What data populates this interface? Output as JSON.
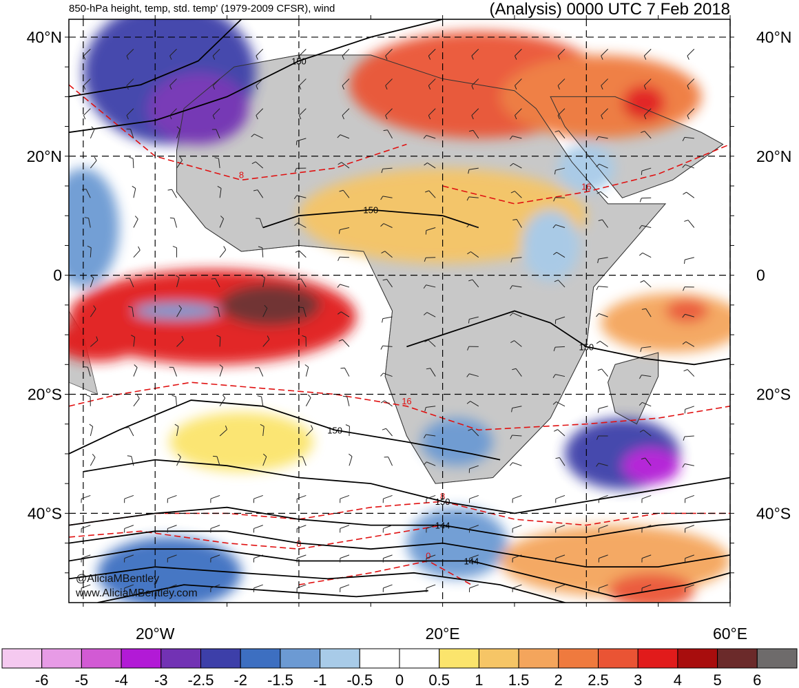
{
  "header": {
    "title_left": "850-hPa height, temp, std. temp' (1979-2009 CFSR), wind",
    "title_right": "(Analysis) 0000 UTC 7 Feb 2018"
  },
  "credits": {
    "handle": "@AliciaMBentley",
    "site": "www.AliciaMBentley.com"
  },
  "colors": {
    "neg6": "#f5c9f0",
    "neg5": "#e79be6",
    "neg4": "#d25ad4",
    "neg3": "#b21ad6",
    "neg25": "#7232b4",
    "neg2": "#3d3fa9",
    "neg15": "#3d6fc1",
    "neg1": "#6c9ad3",
    "neg05": "#a8cbe8",
    "zero": "#ffffff",
    "pos05": "#fbe46c",
    "pos1": "#f6c566",
    "pos15": "#f4a55c",
    "pos2": "#ef7a3e",
    "pos25": "#ea5434",
    "pos3": "#e11b1b",
    "pos4": "#a80d0d",
    "pos5": "#6b2a2a",
    "pos6": "#6e6b6b",
    "land": "#c8c8c8",
    "height_contour": "#000000",
    "temp_contour": "#e01010"
  },
  "chart_data": {
    "type": "heatmap",
    "title": "850-hPa height, temp, std. temp' (1979-2009 CFSR), wind",
    "subtitle": "(Analysis) 0000 UTC 7 Feb 2018",
    "lon_range": [
      -32,
      60
    ],
    "lat_range": [
      -55,
      43
    ],
    "lat_ticks": [
      {
        "lat": 40,
        "label": "40°N"
      },
      {
        "lat": 20,
        "label": "20°N"
      },
      {
        "lat": 0,
        "label": "0"
      },
      {
        "lat": -20,
        "label": "20°S"
      },
      {
        "lat": -40,
        "label": "40°S"
      }
    ],
    "lon_ticks": [
      {
        "lon": -20,
        "label": "20°W"
      },
      {
        "lon": 20,
        "label": "20°E"
      },
      {
        "lon": 60,
        "label": "60°E"
      }
    ],
    "grid_lons": [
      -30,
      -20,
      -10,
      0,
      10,
      20,
      30,
      40,
      50,
      60
    ],
    "grid_lats": [
      40,
      30,
      20,
      10,
      0,
      -10,
      -20,
      -30,
      -40,
      -50
    ],
    "colorbar": {
      "labels": [
        "-6",
        "-5",
        "-4",
        "-3",
        "-2.5",
        "-2",
        "-1.5",
        "-1",
        "-0.5",
        "0",
        "0.5",
        "1",
        "1.5",
        "2",
        "2.5",
        "3",
        "4",
        "5",
        "6"
      ],
      "bins": [
        "neg6",
        "neg5",
        "neg4",
        "neg3",
        "neg25",
        "neg2",
        "neg15",
        "neg1",
        "neg05",
        "zero",
        "zero",
        "pos05",
        "pos1",
        "pos15",
        "pos2",
        "pos25",
        "pos3",
        "pos4",
        "pos5",
        "pos6"
      ]
    },
    "anomaly_regions": [
      {
        "name": "equatorial-atlantic-warm",
        "lon": -12,
        "lat": -7,
        "rx": 20,
        "ry": 8,
        "value": 3.5
      },
      {
        "name": "equatorial-atlantic-core",
        "lon": -4,
        "lat": -5,
        "rx": 7,
        "ry": 3.5,
        "value": 5.5
      },
      {
        "name": "atlantic-west-warm",
        "lon": -28,
        "lat": -11,
        "rx": 6,
        "ry": 3.5,
        "value": 3.5
      },
      {
        "name": "atlantic-cold-streak",
        "lon": -17,
        "lat": -6,
        "rx": 6,
        "ry": 1.3,
        "value": -1.2
      },
      {
        "name": "north-africa-warm",
        "lon": 25,
        "lat": 32,
        "rx": 18,
        "ry": 9,
        "value": 2.8
      },
      {
        "name": "middle-east-warm",
        "lon": 42,
        "lat": 30,
        "rx": 14,
        "ry": 7,
        "value": 2.2
      },
      {
        "name": "iran-hot-spot",
        "lon": 48,
        "lat": 29,
        "rx": 3,
        "ry": 3,
        "value": 3.5
      },
      {
        "name": "sahel-warm",
        "lon": 20,
        "lat": 10,
        "rx": 20,
        "ry": 8,
        "value": 1.0
      },
      {
        "name": "north-atlantic-cold",
        "lon": -18,
        "lat": 34,
        "rx": 12,
        "ry": 12,
        "value": -2.3
      },
      {
        "name": "north-atlantic-cold-core",
        "lon": -14,
        "lat": 28,
        "rx": 7,
        "ry": 6,
        "value": -2.8
      },
      {
        "name": "western-atlantic-cold",
        "lon": -30,
        "lat": 8,
        "rx": 5,
        "ry": 10,
        "value": -1.0
      },
      {
        "name": "madagascar-cold",
        "lon": 45,
        "lat": -30,
        "rx": 8,
        "ry": 6,
        "value": -2.0
      },
      {
        "name": "madagascar-cold-core",
        "lon": 49,
        "lat": -32,
        "rx": 4,
        "ry": 3,
        "value": -3.5
      },
      {
        "name": "south-africa-cold",
        "lon": 22,
        "lat": -28,
        "rx": 5,
        "ry": 4,
        "value": -1.0
      },
      {
        "name": "southern-atlantic-cold",
        "lon": -18,
        "lat": -50,
        "rx": 10,
        "ry": 6,
        "value": -1.5
      },
      {
        "name": "southern-ocean-cold",
        "lon": 22,
        "lat": -45,
        "rx": 7,
        "ry": 6,
        "value": -1.3
      },
      {
        "name": "southern-ocean-warm",
        "lon": 44,
        "lat": -48,
        "rx": 16,
        "ry": 6,
        "value": 1.7
      },
      {
        "name": "southern-ocean-warm-core",
        "lon": 49,
        "lat": -53,
        "rx": 6,
        "ry": 3,
        "value": 2.8
      },
      {
        "name": "indian-ocean-warm",
        "lon": 52,
        "lat": -8,
        "rx": 10,
        "ry": 5,
        "value": 1.5
      },
      {
        "name": "indian-ocean-hot",
        "lon": 54,
        "lat": -6,
        "rx": 3,
        "ry": 2,
        "value": 2.8
      },
      {
        "name": "south-atlantic-warm",
        "lon": -8,
        "lat": -28,
        "rx": 10,
        "ry": 5,
        "value": 0.8
      },
      {
        "name": "east-africa-cold",
        "lon": 35,
        "lat": 5,
        "rx": 4,
        "ry": 6,
        "value": -0.8
      },
      {
        "name": "arabia-sea-cold",
        "lon": 40,
        "lat": 18,
        "rx": 4,
        "ry": 4,
        "value": -0.8
      }
    ],
    "height_contours": [
      {
        "label": "150",
        "points": [
          [
            -32,
            24
          ],
          [
            -20,
            26
          ],
          [
            -10,
            30
          ],
          [
            0,
            36
          ],
          [
            10,
            40
          ],
          [
            20,
            43
          ]
        ]
      },
      {
        "label": "",
        "points": [
          [
            -32,
            30
          ],
          [
            -22,
            32
          ],
          [
            -14,
            36
          ],
          [
            -8,
            43
          ]
        ]
      },
      {
        "label": "150",
        "points": [
          [
            -5,
            8
          ],
          [
            0,
            10
          ],
          [
            10,
            11
          ],
          [
            20,
            10
          ],
          [
            25,
            8
          ]
        ]
      },
      {
        "label": "150",
        "points": [
          [
            15,
            -12
          ],
          [
            25,
            -8
          ],
          [
            30,
            -6
          ],
          [
            35,
            -8
          ],
          [
            40,
            -12
          ],
          [
            48,
            -14
          ],
          [
            55,
            -15
          ],
          [
            60,
            -14
          ]
        ]
      },
      {
        "label": "150",
        "points": [
          [
            -32,
            -30
          ],
          [
            -25,
            -26
          ],
          [
            -15,
            -21
          ],
          [
            -5,
            -22
          ],
          [
            5,
            -26
          ],
          [
            15,
            -28
          ],
          [
            24,
            -30
          ],
          [
            28,
            -31
          ]
        ]
      },
      {
        "label": "150",
        "points": [
          [
            -30,
            -33
          ],
          [
            -20,
            -31
          ],
          [
            -10,
            -32
          ],
          [
            0,
            -34
          ],
          [
            10,
            -35
          ],
          [
            20,
            -38
          ],
          [
            30,
            -40
          ],
          [
            40,
            -38
          ],
          [
            50,
            -36
          ],
          [
            60,
            -34
          ]
        ]
      },
      {
        "label": "144",
        "points": [
          [
            -32,
            -42
          ],
          [
            -20,
            -40
          ],
          [
            -10,
            -39
          ],
          [
            0,
            -41
          ],
          [
            10,
            -42
          ],
          [
            20,
            -42
          ],
          [
            30,
            -44
          ],
          [
            40,
            -44
          ],
          [
            50,
            -42
          ],
          [
            60,
            -41
          ]
        ]
      },
      {
        "label": "",
        "points": [
          [
            -32,
            -45
          ],
          [
            -20,
            -43
          ],
          [
            -10,
            -43
          ],
          [
            0,
            -45
          ],
          [
            10,
            -46
          ],
          [
            20,
            -45
          ],
          [
            30,
            -47
          ],
          [
            40,
            -49
          ],
          [
            50,
            -49
          ],
          [
            60,
            -47
          ]
        ]
      },
      {
        "label": "144",
        "points": [
          [
            -32,
            -48
          ],
          [
            -22,
            -46
          ],
          [
            -12,
            -46
          ],
          [
            0,
            -48
          ],
          [
            12,
            -48
          ],
          [
            24,
            -48
          ],
          [
            34,
            -51
          ],
          [
            44,
            -54
          ],
          [
            54,
            -52
          ],
          [
            60,
            -50
          ]
        ]
      },
      {
        "label": "",
        "points": [
          [
            -32,
            -51
          ],
          [
            -20,
            -49
          ],
          [
            -8,
            -50
          ],
          [
            4,
            -51
          ],
          [
            16,
            -50
          ],
          [
            28,
            -52
          ],
          [
            40,
            -56
          ]
        ]
      },
      {
        "label": "",
        "points": [
          [
            -28,
            -55
          ],
          [
            -16,
            -52
          ],
          [
            -4,
            -53
          ],
          [
            8,
            -54
          ],
          [
            18,
            -53
          ]
        ]
      }
    ],
    "temp_contours": [
      {
        "label": "8",
        "points": [
          [
            -32,
            32
          ],
          [
            -20,
            20
          ],
          [
            -8,
            16
          ],
          [
            5,
            18
          ],
          [
            15,
            22
          ]
        ]
      },
      {
        "label": "16",
        "points": [
          [
            20,
            15
          ],
          [
            30,
            12
          ],
          [
            40,
            14
          ],
          [
            50,
            17
          ],
          [
            60,
            22
          ]
        ]
      },
      {
        "label": "16",
        "points": [
          [
            -32,
            -22
          ],
          [
            -25,
            -20
          ],
          [
            -15,
            -18
          ],
          [
            -5,
            -19
          ],
          [
            5,
            -20
          ],
          [
            15,
            -22
          ],
          [
            25,
            -26
          ],
          [
            40,
            -25
          ],
          [
            50,
            -24
          ],
          [
            60,
            -22
          ]
        ]
      },
      {
        "label": "8",
        "points": [
          [
            -32,
            -42
          ],
          [
            -20,
            -40
          ],
          [
            -10,
            -40
          ],
          [
            0,
            -41
          ],
          [
            10,
            -39
          ],
          [
            20,
            -38
          ],
          [
            30,
            -41
          ],
          [
            40,
            -42
          ],
          [
            50,
            -40
          ],
          [
            60,
            -40
          ]
        ]
      },
      {
        "label": "8",
        "points": [
          [
            -32,
            -44
          ],
          [
            -22,
            -43
          ],
          [
            -10,
            -45
          ],
          [
            0,
            -46
          ],
          [
            10,
            -44
          ],
          [
            20,
            -42
          ]
        ]
      },
      {
        "label": "0",
        "points": [
          [
            0,
            -52
          ],
          [
            10,
            -50
          ],
          [
            18,
            -48
          ],
          [
            24,
            -52
          ]
        ]
      }
    ]
  }
}
